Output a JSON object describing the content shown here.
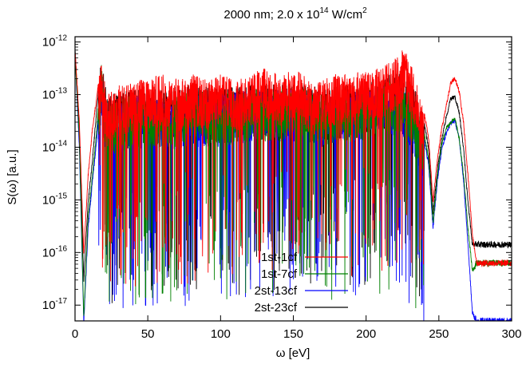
{
  "chart_data": {
    "type": "line",
    "title": "2000 nm; 2.0 x 10",
    "title_sup": "14",
    "title_unit": "W/cm",
    "title_unit_sup": "2",
    "xlabel": "ω [eV]",
    "ylabel": "S(ω) [a.u.]",
    "xlim": [
      0,
      300
    ],
    "ylim_log10": [
      -17.3,
      -11.9
    ],
    "yscale": "log",
    "grid": false,
    "legend_position": "bottom-center",
    "x_ticks": [
      0,
      50,
      100,
      150,
      200,
      250,
      300
    ],
    "x_tick_labels": [
      "0",
      "50",
      "100",
      "150",
      "200",
      "250",
      "300"
    ],
    "y_ticks_log10": [
      -17,
      -16,
      -15,
      -14,
      -13,
      -12
    ],
    "y_tick_mantissa": "10",
    "y_tick_exponents": [
      "-17",
      "-16",
      "-15",
      "-14",
      "-13",
      "-12"
    ],
    "series": [
      {
        "name": "1st-1cf",
        "color": "#ff0000",
        "points": [
          [
            0,
            -12.1
          ],
          [
            3,
            -13.5
          ],
          [
            6,
            -16.0
          ],
          [
            9,
            -14.5
          ],
          [
            12,
            -13.6
          ],
          [
            15,
            -13.0
          ],
          [
            18,
            -12.3
          ],
          [
            22,
            -13.0
          ],
          [
            30,
            -12.8
          ],
          [
            40,
            -12.7
          ],
          [
            50,
            -12.7
          ],
          [
            60,
            -12.6
          ],
          [
            70,
            -12.7
          ],
          [
            80,
            -12.6
          ],
          [
            90,
            -12.7
          ],
          [
            100,
            -12.6
          ],
          [
            110,
            -12.7
          ],
          [
            120,
            -12.6
          ],
          [
            130,
            -12.5
          ],
          [
            140,
            -12.6
          ],
          [
            150,
            -12.5
          ],
          [
            157,
            -12.6
          ],
          [
            162,
            -12.8
          ],
          [
            170,
            -12.7
          ],
          [
            180,
            -12.6
          ],
          [
            190,
            -12.6
          ],
          [
            200,
            -12.5
          ],
          [
            210,
            -12.5
          ],
          [
            220,
            -12.3
          ],
          [
            226,
            -12.1
          ],
          [
            232,
            -12.5
          ],
          [
            238,
            -13.0
          ],
          [
            243,
            -13.8
          ],
          [
            246,
            -15.0
          ],
          [
            249,
            -14.2
          ],
          [
            252,
            -13.6
          ],
          [
            255,
            -13.2
          ],
          [
            258,
            -12.75
          ],
          [
            261,
            -12.65
          ],
          [
            264,
            -12.9
          ],
          [
            267,
            -13.5
          ],
          [
            270,
            -14.5
          ],
          [
            273,
            -15.6
          ],
          [
            276,
            -16.2
          ],
          [
            280,
            -16.2
          ],
          [
            300,
            -16.2
          ]
        ]
      },
      {
        "name": "1st-7cf",
        "color": "#008000",
        "points": [
          [
            0,
            -12.2
          ],
          [
            3,
            -13.8
          ],
          [
            6,
            -17.2
          ],
          [
            9,
            -15.3
          ],
          [
            12,
            -14.5
          ],
          [
            15,
            -13.6
          ],
          [
            18,
            -12.4
          ],
          [
            22,
            -13.2
          ],
          [
            40,
            -13.0
          ],
          [
            60,
            -13.1
          ],
          [
            80,
            -12.9
          ],
          [
            100,
            -13.0
          ],
          [
            120,
            -12.9
          ],
          [
            140,
            -12.9
          ],
          [
            155,
            -12.8
          ],
          [
            170,
            -13.0
          ],
          [
            190,
            -12.9
          ],
          [
            210,
            -12.8
          ],
          [
            225,
            -12.7
          ],
          [
            232,
            -13.0
          ],
          [
            238,
            -13.4
          ],
          [
            243,
            -14.2
          ],
          [
            246,
            -15.4
          ],
          [
            249,
            -14.5
          ],
          [
            252,
            -13.9
          ],
          [
            255,
            -13.6
          ],
          [
            258,
            -13.5
          ],
          [
            261,
            -13.4
          ],
          [
            264,
            -13.8
          ],
          [
            267,
            -14.5
          ],
          [
            270,
            -15.5
          ],
          [
            273,
            -16.3
          ],
          [
            276,
            -16.2
          ],
          [
            280,
            -16.2
          ],
          [
            300,
            -16.2
          ]
        ]
      },
      {
        "name": "2st-13cf",
        "color": "#0000ff",
        "points": [
          [
            0,
            -12.2
          ],
          [
            3,
            -14.0
          ],
          [
            6,
            -17.3
          ],
          [
            9,
            -15.5
          ],
          [
            12,
            -14.6
          ],
          [
            15,
            -13.8
          ],
          [
            18,
            -12.5
          ],
          [
            22,
            -13.3
          ],
          [
            40,
            -13.0
          ],
          [
            60,
            -13.1
          ],
          [
            80,
            -13.0
          ],
          [
            100,
            -13.0
          ],
          [
            120,
            -12.9
          ],
          [
            140,
            -12.9
          ],
          [
            155,
            -12.9
          ],
          [
            170,
            -13.0
          ],
          [
            190,
            -12.9
          ],
          [
            210,
            -12.8
          ],
          [
            225,
            -12.8
          ],
          [
            232,
            -13.1
          ],
          [
            238,
            -13.5
          ],
          [
            243,
            -14.3
          ],
          [
            246,
            -15.5
          ],
          [
            249,
            -14.6
          ],
          [
            252,
            -14.0
          ],
          [
            255,
            -13.7
          ],
          [
            258,
            -13.5
          ],
          [
            261,
            -13.45
          ],
          [
            264,
            -13.8
          ],
          [
            267,
            -14.6
          ],
          [
            270,
            -15.8
          ],
          [
            273,
            -17.1
          ],
          [
            276,
            -17.3
          ],
          [
            300,
            -17.3
          ]
        ]
      },
      {
        "name": "2st-23cf",
        "color": "#000000",
        "points": [
          [
            0,
            -12.1
          ],
          [
            3,
            -13.6
          ],
          [
            6,
            -16.5
          ],
          [
            9,
            -15.0
          ],
          [
            12,
            -14.2
          ],
          [
            15,
            -13.2
          ],
          [
            18,
            -12.3
          ],
          [
            22,
            -13.0
          ],
          [
            40,
            -12.9
          ],
          [
            60,
            -12.9
          ],
          [
            80,
            -12.8
          ],
          [
            100,
            -12.9
          ],
          [
            120,
            -12.8
          ],
          [
            140,
            -12.8
          ],
          [
            155,
            -12.7
          ],
          [
            170,
            -12.9
          ],
          [
            190,
            -12.8
          ],
          [
            210,
            -12.7
          ],
          [
            225,
            -12.5
          ],
          [
            232,
            -12.8
          ],
          [
            238,
            -13.2
          ],
          [
            243,
            -14.0
          ],
          [
            246,
            -15.2
          ],
          [
            249,
            -14.4
          ],
          [
            252,
            -13.8
          ],
          [
            255,
            -13.4
          ],
          [
            258,
            -13.05
          ],
          [
            261,
            -13.0
          ],
          [
            264,
            -13.3
          ],
          [
            267,
            -14.0
          ],
          [
            270,
            -15.0
          ],
          [
            273,
            -15.8
          ],
          [
            276,
            -15.85
          ],
          [
            280,
            -15.85
          ],
          [
            300,
            -15.85
          ]
        ]
      }
    ]
  }
}
